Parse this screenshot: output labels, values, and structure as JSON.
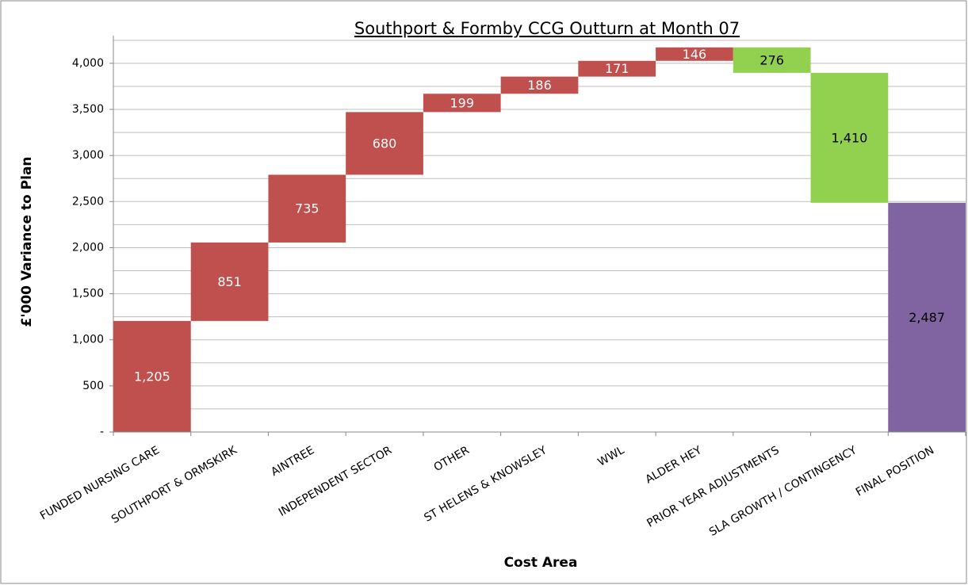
{
  "chart_data": {
    "type": "waterfall",
    "title": "Southport & Formby CCG Outturn at Month 07",
    "x_label": "Cost Area",
    "y_label": "£'000 Variance to Plan",
    "categories": [
      "FUNDED NURSING CARE",
      "SOUTHPORT & ORMSKIRK",
      "AINTREE",
      "INDEPENDENT SECTOR",
      "OTHER",
      "ST HELENS & KNOWSLEY",
      "WWL",
      "ALDER HEY",
      "PRIOR YEAR ADJUSTMENTS",
      "SLA GROWTH / CONTINGENCY",
      "FINAL POSITION"
    ],
    "values": [
      1205,
      851,
      735,
      680,
      199,
      186,
      171,
      146,
      -276,
      -1410,
      2487
    ],
    "value_labels": [
      "1,205",
      "851",
      "735",
      "680",
      "199",
      "186",
      "171",
      "146",
      "276",
      "1,410",
      "2,487"
    ],
    "is_total": [
      false,
      false,
      false,
      false,
      false,
      false,
      false,
      false,
      false,
      false,
      true
    ],
    "colors": [
      "#c0504d",
      "#c0504d",
      "#c0504d",
      "#c0504d",
      "#c0504d",
      "#c0504d",
      "#c0504d",
      "#c0504d",
      "#92d050",
      "#92d050",
      "#8064a2"
    ],
    "label_colors": [
      "#ffffff",
      "#ffffff",
      "#ffffff",
      "#ffffff",
      "#ffffff",
      "#ffffff",
      "#ffffff",
      "#ffffff",
      "#000000",
      "#000000",
      "#000000"
    ],
    "ylim": [
      0,
      4300
    ],
    "yticks": [
      {
        "value": 0,
        "label": "-"
      },
      500,
      {
        "value": 1000,
        "label": "1,000"
      },
      {
        "value": 1500,
        "label": "1,500"
      },
      {
        "value": 2000,
        "label": "2,000"
      },
      {
        "value": 2500,
        "label": "2,500"
      },
      {
        "value": 3000,
        "label": "3,000"
      },
      {
        "value": 3500,
        "label": "3,500"
      },
      {
        "value": 4000,
        "label": "4,000"
      }
    ],
    "yticks_minor": [
      250,
      750,
      1250,
      1750,
      2250,
      2750,
      3250,
      3750,
      4250
    ],
    "grid": true
  }
}
